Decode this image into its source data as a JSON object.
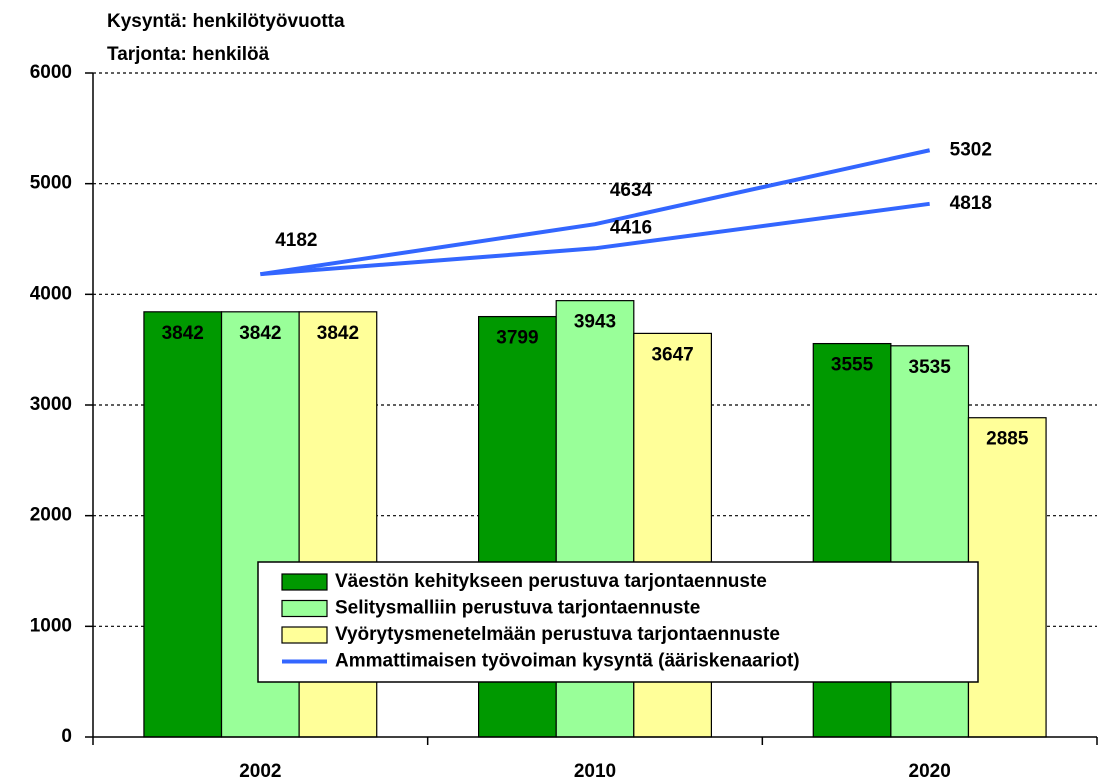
{
  "chart_data": {
    "type": "bar",
    "title_lines": [
      "Kysyntä: henkilötyövuotta",
      "Tarjonta: henkilöä"
    ],
    "categories": [
      "2002",
      "2010",
      "2020"
    ],
    "series": [
      {
        "name": "Väestön kehitykseen perustuva tarjontaennuste",
        "color": "#009900",
        "values": [
          3842,
          3799,
          3555
        ]
      },
      {
        "name": "Selitysmalliin perustuva tarjontaennuste",
        "color": "#99ff99",
        "values": [
          3842,
          3943,
          3535
        ]
      },
      {
        "name": "Vyörytysmenetelmään perustuva tarjontaennuste",
        "color": "#ffff99",
        "values": [
          3842,
          3647,
          2885
        ]
      }
    ],
    "lines": {
      "name": "Ammattimaisen työvoiman kysyntä (ääriskenaariot)",
      "color": "#3366ff",
      "scenarios": [
        [
          4182,
          4634,
          5302
        ],
        [
          4182,
          4416,
          4818
        ]
      ]
    },
    "ylim": [
      0,
      6000
    ],
    "yticks": [
      0,
      1000,
      2000,
      3000,
      4000,
      5000,
      6000
    ],
    "grid": true
  }
}
